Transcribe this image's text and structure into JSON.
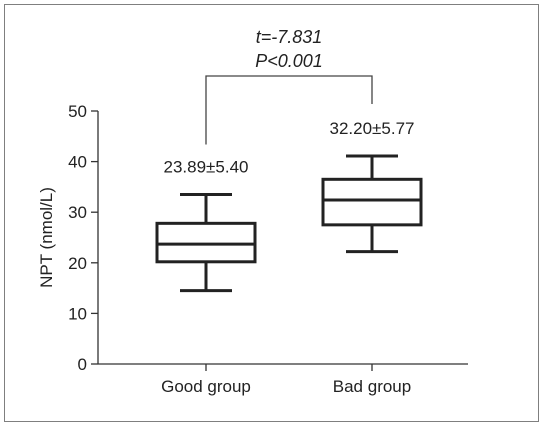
{
  "chart_data": {
    "type": "box",
    "ylabel": "NPT (nmol/L)",
    "ylim": [
      0,
      50
    ],
    "yticks": [
      0,
      10,
      20,
      30,
      40,
      50
    ],
    "categories": [
      "Good group",
      "Bad group"
    ],
    "boxes": [
      {
        "category": "Good group",
        "min": 14.5,
        "q1": 20.2,
        "median": 23.7,
        "q3": 27.8,
        "max": 33.5,
        "label": "23.89±5.40"
      },
      {
        "category": "Bad group",
        "min": 22.2,
        "q1": 27.5,
        "median": 32.4,
        "q3": 36.5,
        "max": 41.1,
        "label": "32.20±5.77"
      }
    ],
    "significance": {
      "t_text": "t=-7.831",
      "p_text": "P<0.001"
    },
    "grid": false,
    "legend": "none"
  }
}
